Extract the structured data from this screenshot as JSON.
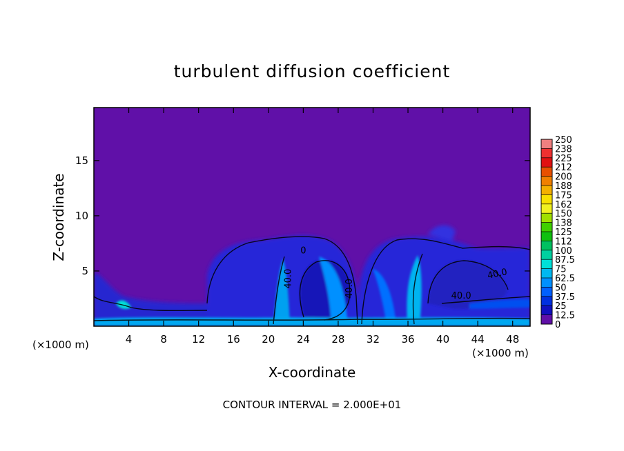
{
  "chart_data": {
    "type": "heatmap",
    "title": "turbulent diffusion coefficient",
    "xlabel": "X-coordinate",
    "ylabel": "Z-coordinate",
    "x_unit_left": "(×1000 m)",
    "x_unit_right": "(×1000 m)",
    "footer": "CONTOUR INTERVAL = 2.000E+01",
    "xlim": [
      0,
      50
    ],
    "ylim": [
      0,
      19.8
    ],
    "x_ticks": [
      "4",
      "8",
      "12",
      "16",
      "20",
      "24",
      "28",
      "32",
      "36",
      "40",
      "44",
      "48"
    ],
    "y_ticks": [
      "5",
      "10",
      "15"
    ],
    "colorbar": {
      "labels": [
        "250",
        "238",
        "225",
        "212",
        "200",
        "188",
        "175",
        "162",
        "150",
        "138",
        "125",
        "112",
        "100",
        "87.5",
        "75",
        "62.5",
        "50",
        "37.5",
        "25",
        "12.5",
        "0"
      ],
      "colors": [
        "#f08080",
        "#ee3030",
        "#e01010",
        "#e85000",
        "#f08000",
        "#f4b000",
        "#f8e000",
        "#f0f020",
        "#a0e000",
        "#40d000",
        "#10c010",
        "#00c060",
        "#00d0a0",
        "#00e0d8",
        "#00b8f0",
        "#0090ff",
        "#0060ff",
        "#0030e0",
        "#1010c0",
        "#6010a8"
      ]
    },
    "contour_labels": [
      {
        "text": "40.0",
        "x": 22.6,
        "z": 4.3,
        "rotate": -90
      },
      {
        "text": "40.0",
        "x": 29.6,
        "z": 3.4,
        "rotate": -90
      },
      {
        "text": "40.0",
        "x": 46.3,
        "z": 4.5,
        "rotate": -12
      },
      {
        "text": "40.0",
        "x": 42.1,
        "z": 2.5,
        "rotate": 0
      },
      {
        "text": "0",
        "x": 24.0,
        "z": 6.6,
        "rotate": 0
      }
    ]
  }
}
